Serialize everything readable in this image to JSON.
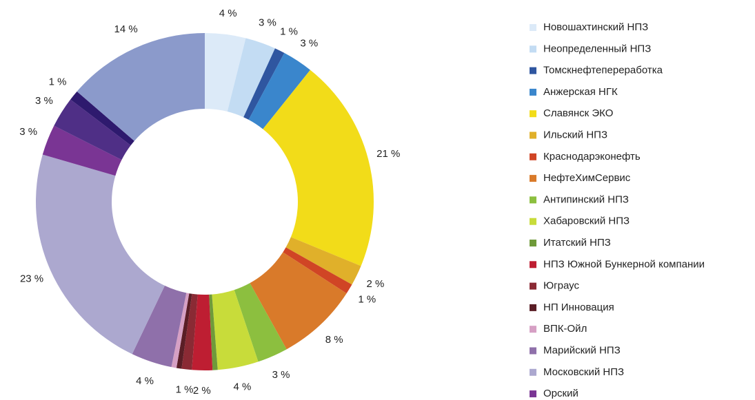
{
  "chart_data": {
    "type": "donut",
    "categories": [
      "Новошахтинский НПЗ",
      "Неопределенный НПЗ",
      "Томскнефтепереработка",
      "Анжерская НГК",
      "Славянск ЭКО",
      "Ильский НПЗ",
      "Краснодарэконефть",
      "НефтеХимСервис",
      "Антипинский НПЗ",
      "Хабаровский НПЗ",
      "Итатский НПЗ",
      "НПЗ Южной Бункерной компании",
      "Юграус",
      "НП Инновация",
      "ВПК-Ойл",
      "Марийский НПЗ",
      "Московский НПЗ",
      "Орский",
      null,
      null,
      null
    ],
    "values": [
      4,
      3,
      1,
      3,
      21,
      2,
      1,
      8,
      3,
      4,
      0.5,
      2,
      1,
      0.5,
      0.5,
      4,
      23,
      3,
      3,
      1,
      14
    ],
    "value_labels": [
      "4 %",
      "3 %",
      "1 %",
      "3 %",
      "21 %",
      "2 %",
      "1 %",
      "8 %",
      "3 %",
      "4 %",
      null,
      "2 %",
      "1 %",
      null,
      null,
      "4 %",
      "23 %",
      "3 %",
      "3 %",
      "1 %",
      "14 %"
    ],
    "colors": [
      "#dceaf8",
      "#c3dcf3",
      "#2f56a0",
      "#3a86cc",
      "#f2dc19",
      "#e0b02a",
      "#d04525",
      "#d97a2a",
      "#8cbf3f",
      "#c8dc3a",
      "#6f9a3a",
      "#be1e32",
      "#8a2a34",
      "#5a1e26",
      "#d6a0c4",
      "#8f70aa",
      "#aca8cf",
      "#7a3594",
      "#4f2f86",
      "#2e1a6e",
      "#8b9acb"
    ]
  }
}
